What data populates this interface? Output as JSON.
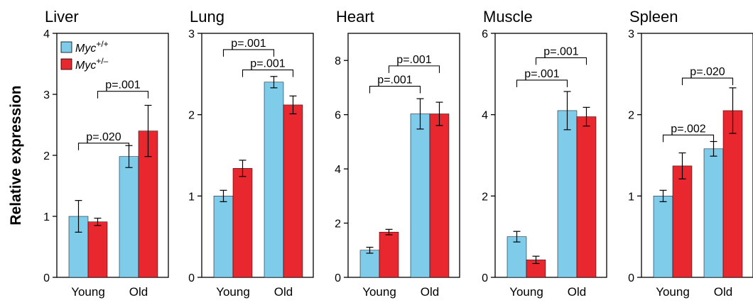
{
  "ylabel": "Relative expression",
  "legend": {
    "placement": "top-left",
    "entries": [
      {
        "name_base": "Myc",
        "name_sup": "+/+",
        "color": "#7ecbea"
      },
      {
        "name_base": "Myc",
        "name_sup": "+/–",
        "color": "#e8282e"
      }
    ]
  },
  "chart_data": [
    {
      "type": "bar",
      "title": "Liver",
      "categories": [
        "Young",
        "Old"
      ],
      "ylim": [
        0,
        4
      ],
      "yticks": [
        "0",
        "1",
        "2",
        "3",
        "4"
      ],
      "series": [
        {
          "name": "Myc+/+",
          "values": [
            1.0,
            1.98
          ],
          "errors": [
            0.26,
            0.18
          ]
        },
        {
          "name": "Myc+/–",
          "values": [
            0.91,
            2.4
          ],
          "errors": [
            0.06,
            0.42
          ]
        }
      ],
      "annotations": [
        {
          "label": "p=.020",
          "from": [
            0,
            0
          ],
          "to": [
            1,
            0
          ],
          "y": 2.2
        },
        {
          "label": "p=.001",
          "from": [
            0,
            1
          ],
          "to": [
            1,
            1
          ],
          "y": 3.05
        }
      ]
    },
    {
      "type": "bar",
      "title": "Lung",
      "categories": [
        "Young",
        "Old"
      ],
      "ylim": [
        0,
        3
      ],
      "yticks": [
        "0",
        "1",
        "2",
        "3"
      ],
      "series": [
        {
          "name": "Myc+/+",
          "values": [
            1.0,
            2.4
          ],
          "errors": [
            0.07,
            0.07
          ]
        },
        {
          "name": "Myc+/–",
          "values": [
            1.34,
            2.12
          ],
          "errors": [
            0.1,
            0.11
          ]
        }
      ],
      "annotations": [
        {
          "label": "p=.001",
          "from": [
            0,
            1
          ],
          "to": [
            1,
            1
          ],
          "y": 2.55
        },
        {
          "label": "p=.001",
          "from": [
            0,
            0
          ],
          "to": [
            1,
            0
          ],
          "y": 2.8
        }
      ]
    },
    {
      "type": "bar",
      "title": "Heart",
      "categories": [
        "Young",
        "Old"
      ],
      "ylim": [
        0,
        9
      ],
      "yticks": [
        "0",
        "2",
        "4",
        "6",
        "8"
      ],
      "series": [
        {
          "name": "Myc+/+",
          "values": [
            1.0,
            6.03
          ],
          "errors": [
            0.11,
            0.56
          ]
        },
        {
          "name": "Myc+/–",
          "values": [
            1.67,
            6.03
          ],
          "errors": [
            0.1,
            0.43
          ]
        }
      ],
      "annotations": [
        {
          "label": "p=.001",
          "from": [
            0,
            0
          ],
          "to": [
            1,
            0
          ],
          "y": 7.05
        },
        {
          "label": "p=.001",
          "from": [
            0,
            1
          ],
          "to": [
            1,
            1
          ],
          "y": 7.8
        }
      ]
    },
    {
      "type": "bar",
      "title": "Muscle",
      "categories": [
        "Young",
        "Old"
      ],
      "ylim": [
        0,
        6
      ],
      "yticks": [
        "0",
        "2",
        "4",
        "6"
      ],
      "series": [
        {
          "name": "Myc+/+",
          "values": [
            1.0,
            4.1
          ],
          "errors": [
            0.13,
            0.47
          ]
        },
        {
          "name": "Myc+/–",
          "values": [
            0.43,
            3.95
          ],
          "errors": [
            0.09,
            0.23
          ]
        }
      ],
      "annotations": [
        {
          "label": "p=.001",
          "from": [
            0,
            0
          ],
          "to": [
            1,
            0
          ],
          "y": 4.85
        },
        {
          "label": "p=.001",
          "from": [
            0,
            1
          ],
          "to": [
            1,
            1
          ],
          "y": 5.4
        }
      ]
    },
    {
      "type": "bar",
      "title": "Spleen",
      "categories": [
        "Young",
        "Old"
      ],
      "ylim": [
        0,
        3
      ],
      "yticks": [
        "0",
        "1",
        "2",
        "3"
      ],
      "series": [
        {
          "name": "Myc+/+",
          "values": [
            1.0,
            1.58
          ],
          "errors": [
            0.07,
            0.09
          ]
        },
        {
          "name": "Myc+/–",
          "values": [
            1.37,
            2.05
          ],
          "errors": [
            0.16,
            0.28
          ]
        }
      ],
      "annotations": [
        {
          "label": "p=.002",
          "from": [
            0,
            0
          ],
          "to": [
            1,
            0
          ],
          "y": 1.75
        },
        {
          "label": "p=.020",
          "from": [
            0,
            1
          ],
          "to": [
            1,
            1
          ],
          "y": 2.45
        }
      ]
    }
  ]
}
